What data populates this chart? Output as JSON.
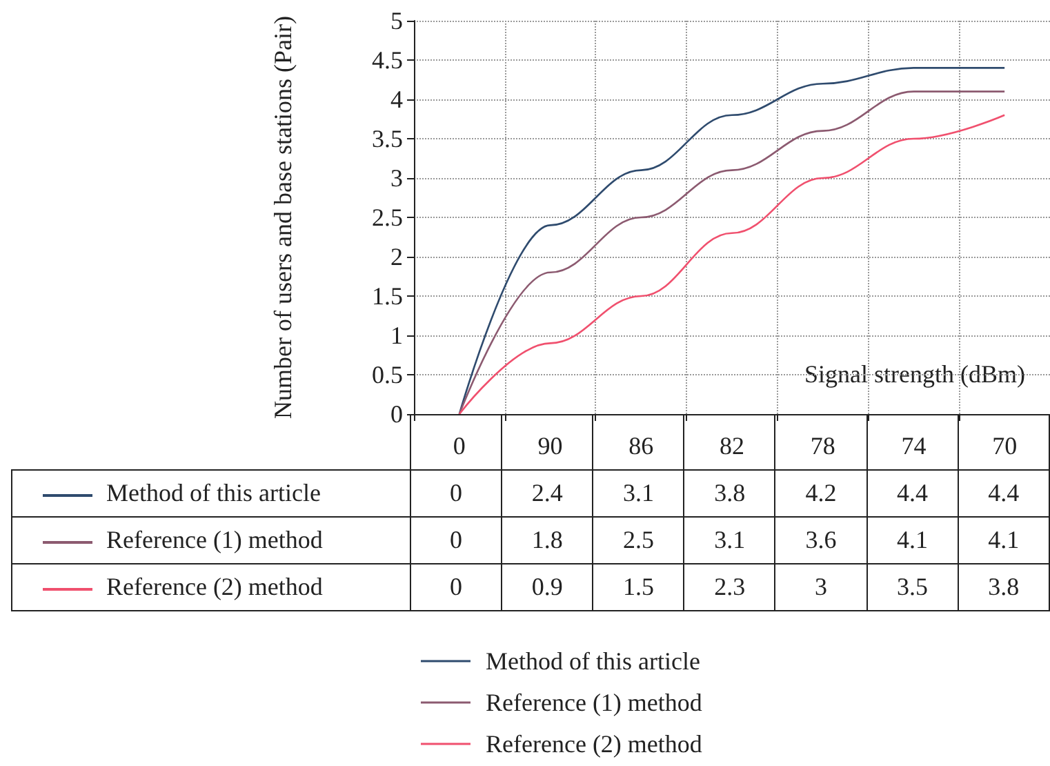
{
  "chart_data": {
    "type": "line",
    "ylabel": "Number of users and base stations (Pair)",
    "xlabel": "Signal strength (dBm)",
    "categories": [
      "0",
      "90",
      "86",
      "82",
      "78",
      "74",
      "70"
    ],
    "series": [
      {
        "name": "Method of this article",
        "color": "#2f4b6e",
        "values": [
          0,
          2.4,
          3.1,
          3.8,
          4.2,
          4.4,
          4.4
        ]
      },
      {
        "name": "Reference (1) method",
        "color": "#8c5a70",
        "values": [
          0,
          1.8,
          2.5,
          3.1,
          3.6,
          4.1,
          4.1
        ]
      },
      {
        "name": "Reference (2) method",
        "color": "#f0506e",
        "values": [
          0,
          0.9,
          1.5,
          2.3,
          3,
          3.5,
          3.8
        ]
      }
    ],
    "ylim": [
      0,
      5
    ],
    "yticks": [
      0,
      0.5,
      1,
      1.5,
      2,
      2.5,
      3,
      3.5,
      4,
      4.5,
      5
    ],
    "grid": true,
    "legend": "bottom",
    "data_labels": true,
    "marker": "none",
    "line_style": "solid"
  }
}
